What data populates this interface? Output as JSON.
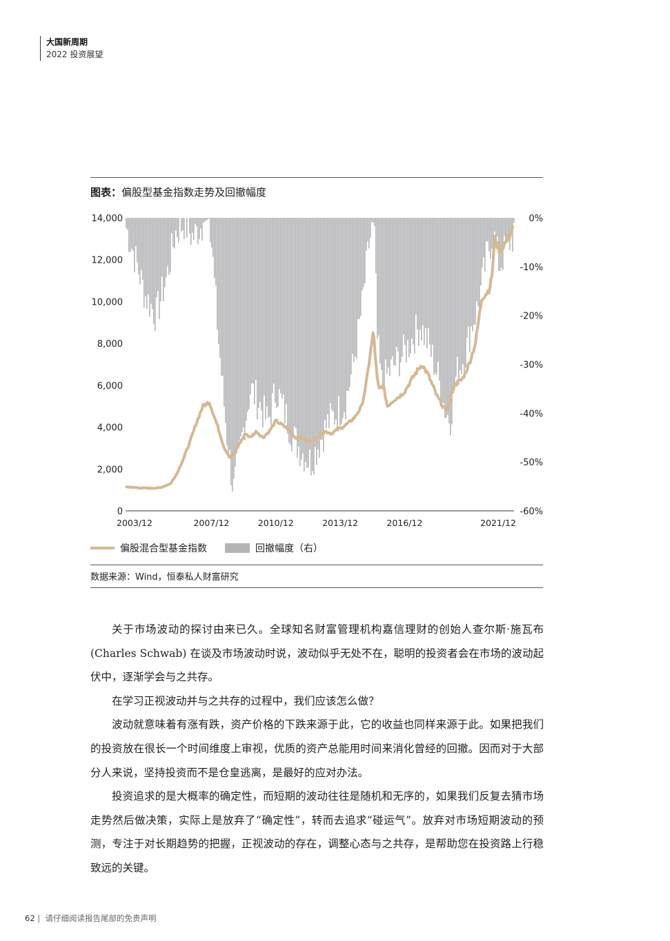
{
  "header": {
    "line1": "大国新周期",
    "line2": "2022 投资展望"
  },
  "figure": {
    "title_prefix": "图表：",
    "title": "偏股型基金指数走势及回撤幅度",
    "legend": {
      "line": "偏股混合型基金指数",
      "bar": "回撤幅度（右）"
    },
    "source": "数据来源：Wind，恒泰私人财富研究"
  },
  "chart_data": {
    "type": "line+bar",
    "x_ticks": [
      "2003/12",
      "2007/12",
      "2010/12",
      "2013/12",
      "2016/12",
      "2021/12"
    ],
    "y_left_ticks": [
      "14,000",
      "12,000",
      "10,000",
      "8,000",
      "6,000",
      "4,000",
      "2,000",
      "0"
    ],
    "y_right_ticks": [
      "0%",
      "-10%",
      "-20%",
      "-30%",
      "-40%",
      "-50%",
      "-60%"
    ],
    "ylim_left": [
      0,
      14000
    ],
    "ylim_right": [
      -60,
      0
    ],
    "colors": {
      "line": "#d4b994",
      "bar": "#b3b4b6"
    },
    "index_series": {
      "name": "偏股混合型基金指数",
      "x": [
        2003.9,
        2004.5,
        2005.0,
        2005.5,
        2006.0,
        2006.3,
        2006.6,
        2006.9,
        2007.2,
        2007.5,
        2007.8,
        2007.9,
        2008.2,
        2008.5,
        2008.8,
        2008.9,
        2009.2,
        2009.5,
        2009.7,
        2010.0,
        2010.3,
        2010.6,
        2010.9,
        2011.2,
        2011.5,
        2011.8,
        2012.1,
        2012.4,
        2012.7,
        2012.9,
        2013.2,
        2013.5,
        2013.8,
        2014.0,
        2014.3,
        2014.6,
        2014.9,
        2015.1,
        2015.3,
        2015.45,
        2015.6,
        2015.7,
        2015.9,
        2016.1,
        2016.4,
        2016.7,
        2016.9,
        2017.3,
        2017.7,
        2018.0,
        2018.4,
        2018.8,
        2018.95,
        2019.2,
        2019.6,
        2019.9,
        2020.2,
        2020.5,
        2020.8,
        2020.95,
        2021.1,
        2021.3,
        2021.6,
        2021.9,
        2022.0
      ],
      "values": [
        1150,
        1100,
        1080,
        1100,
        1300,
        1800,
        2500,
        3300,
        4200,
        5000,
        5200,
        4900,
        4000,
        3000,
        2500,
        2600,
        3200,
        3700,
        3500,
        3800,
        3500,
        3800,
        4300,
        4100,
        3900,
        3500,
        3500,
        3300,
        3400,
        3600,
        3800,
        3700,
        3900,
        4000,
        4200,
        4500,
        5000,
        6000,
        7500,
        8600,
        6500,
        5800,
        6000,
        5000,
        5300,
        5500,
        5700,
        6400,
        7000,
        6500,
        5500,
        4800,
        5000,
        6000,
        6300,
        7000,
        8000,
        10200,
        10500,
        11000,
        13000,
        12500,
        12800,
        13400,
        13500
      ]
    },
    "drawdown_series": {
      "name": "回撤幅度（右）",
      "x": [
        2003.9,
        2004.3,
        2004.8,
        2005.3,
        2005.8,
        2006.2,
        2006.6,
        2007.0,
        2007.5,
        2007.8,
        2008.2,
        2008.6,
        2008.9,
        2009.3,
        2009.7,
        2010.1,
        2010.5,
        2010.9,
        2011.3,
        2011.7,
        2012.1,
        2012.5,
        2012.9,
        2013.3,
        2013.7,
        2014.1,
        2014.5,
        2014.9,
        2015.2,
        2015.45,
        2015.6,
        2015.8,
        2016.1,
        2016.4,
        2016.8,
        2017.2,
        2017.6,
        2018.0,
        2018.4,
        2018.8,
        2019.0,
        2019.3,
        2019.7,
        2020.0,
        2020.3,
        2020.7,
        2021.0,
        2021.3,
        2021.6,
        2021.9,
        2022.0
      ],
      "values": [
        -2,
        -8,
        -16,
        -20,
        -12,
        -3,
        -1,
        -4,
        -1,
        0,
        -25,
        -45,
        -56,
        -45,
        -35,
        -38,
        -42,
        -35,
        -40,
        -45,
        -48,
        -50,
        -46,
        -42,
        -40,
        -38,
        -30,
        -18,
        -6,
        0,
        -25,
        -34,
        -32,
        -30,
        -28,
        -25,
        -22,
        -26,
        -32,
        -40,
        -41,
        -32,
        -28,
        -22,
        -18,
        -8,
        -3,
        -10,
        -6,
        -4,
        -2
      ]
    }
  },
  "body": {
    "paragraphs": [
      "关于市场波动的探讨由来已久。全球知名财富管理机构嘉信理财的创始人查尔斯·施瓦布 (Charles Schwab) 在谈及市场波动时说，波动似乎无处不在，聪明的投资者会在市场的波动起伏中，逐渐学会与之共存。",
      "在学习正视波动并与之共存的过程中，我们应该怎么做？",
      "波动就意味着有涨有跌，资产价格的下跌来源于此，它的收益也同样来源于此。如果把我们的投资放在很长一个时间维度上审视，优质的资产总能用时间来消化曾经的回撤。因而对于大部分人来说，坚持投资而不是仓皇逃离，是最好的应对办法。",
      "投资追求的是大概率的确定性，而短期的波动往往是随机和无序的，如果我们反复去猜市场走势然后做决策，实际上是放弃了“确定性”，转而去追求“碰运气”。放弃对市场短期波动的预测，专注于对长期趋势的把握，正视波动的存在，调整心态与之共存，是帮助您在投资路上行稳致远的关键。"
    ]
  },
  "footer": {
    "page": "62",
    "text": "请仔细阅读报告尾部的免责声明"
  }
}
